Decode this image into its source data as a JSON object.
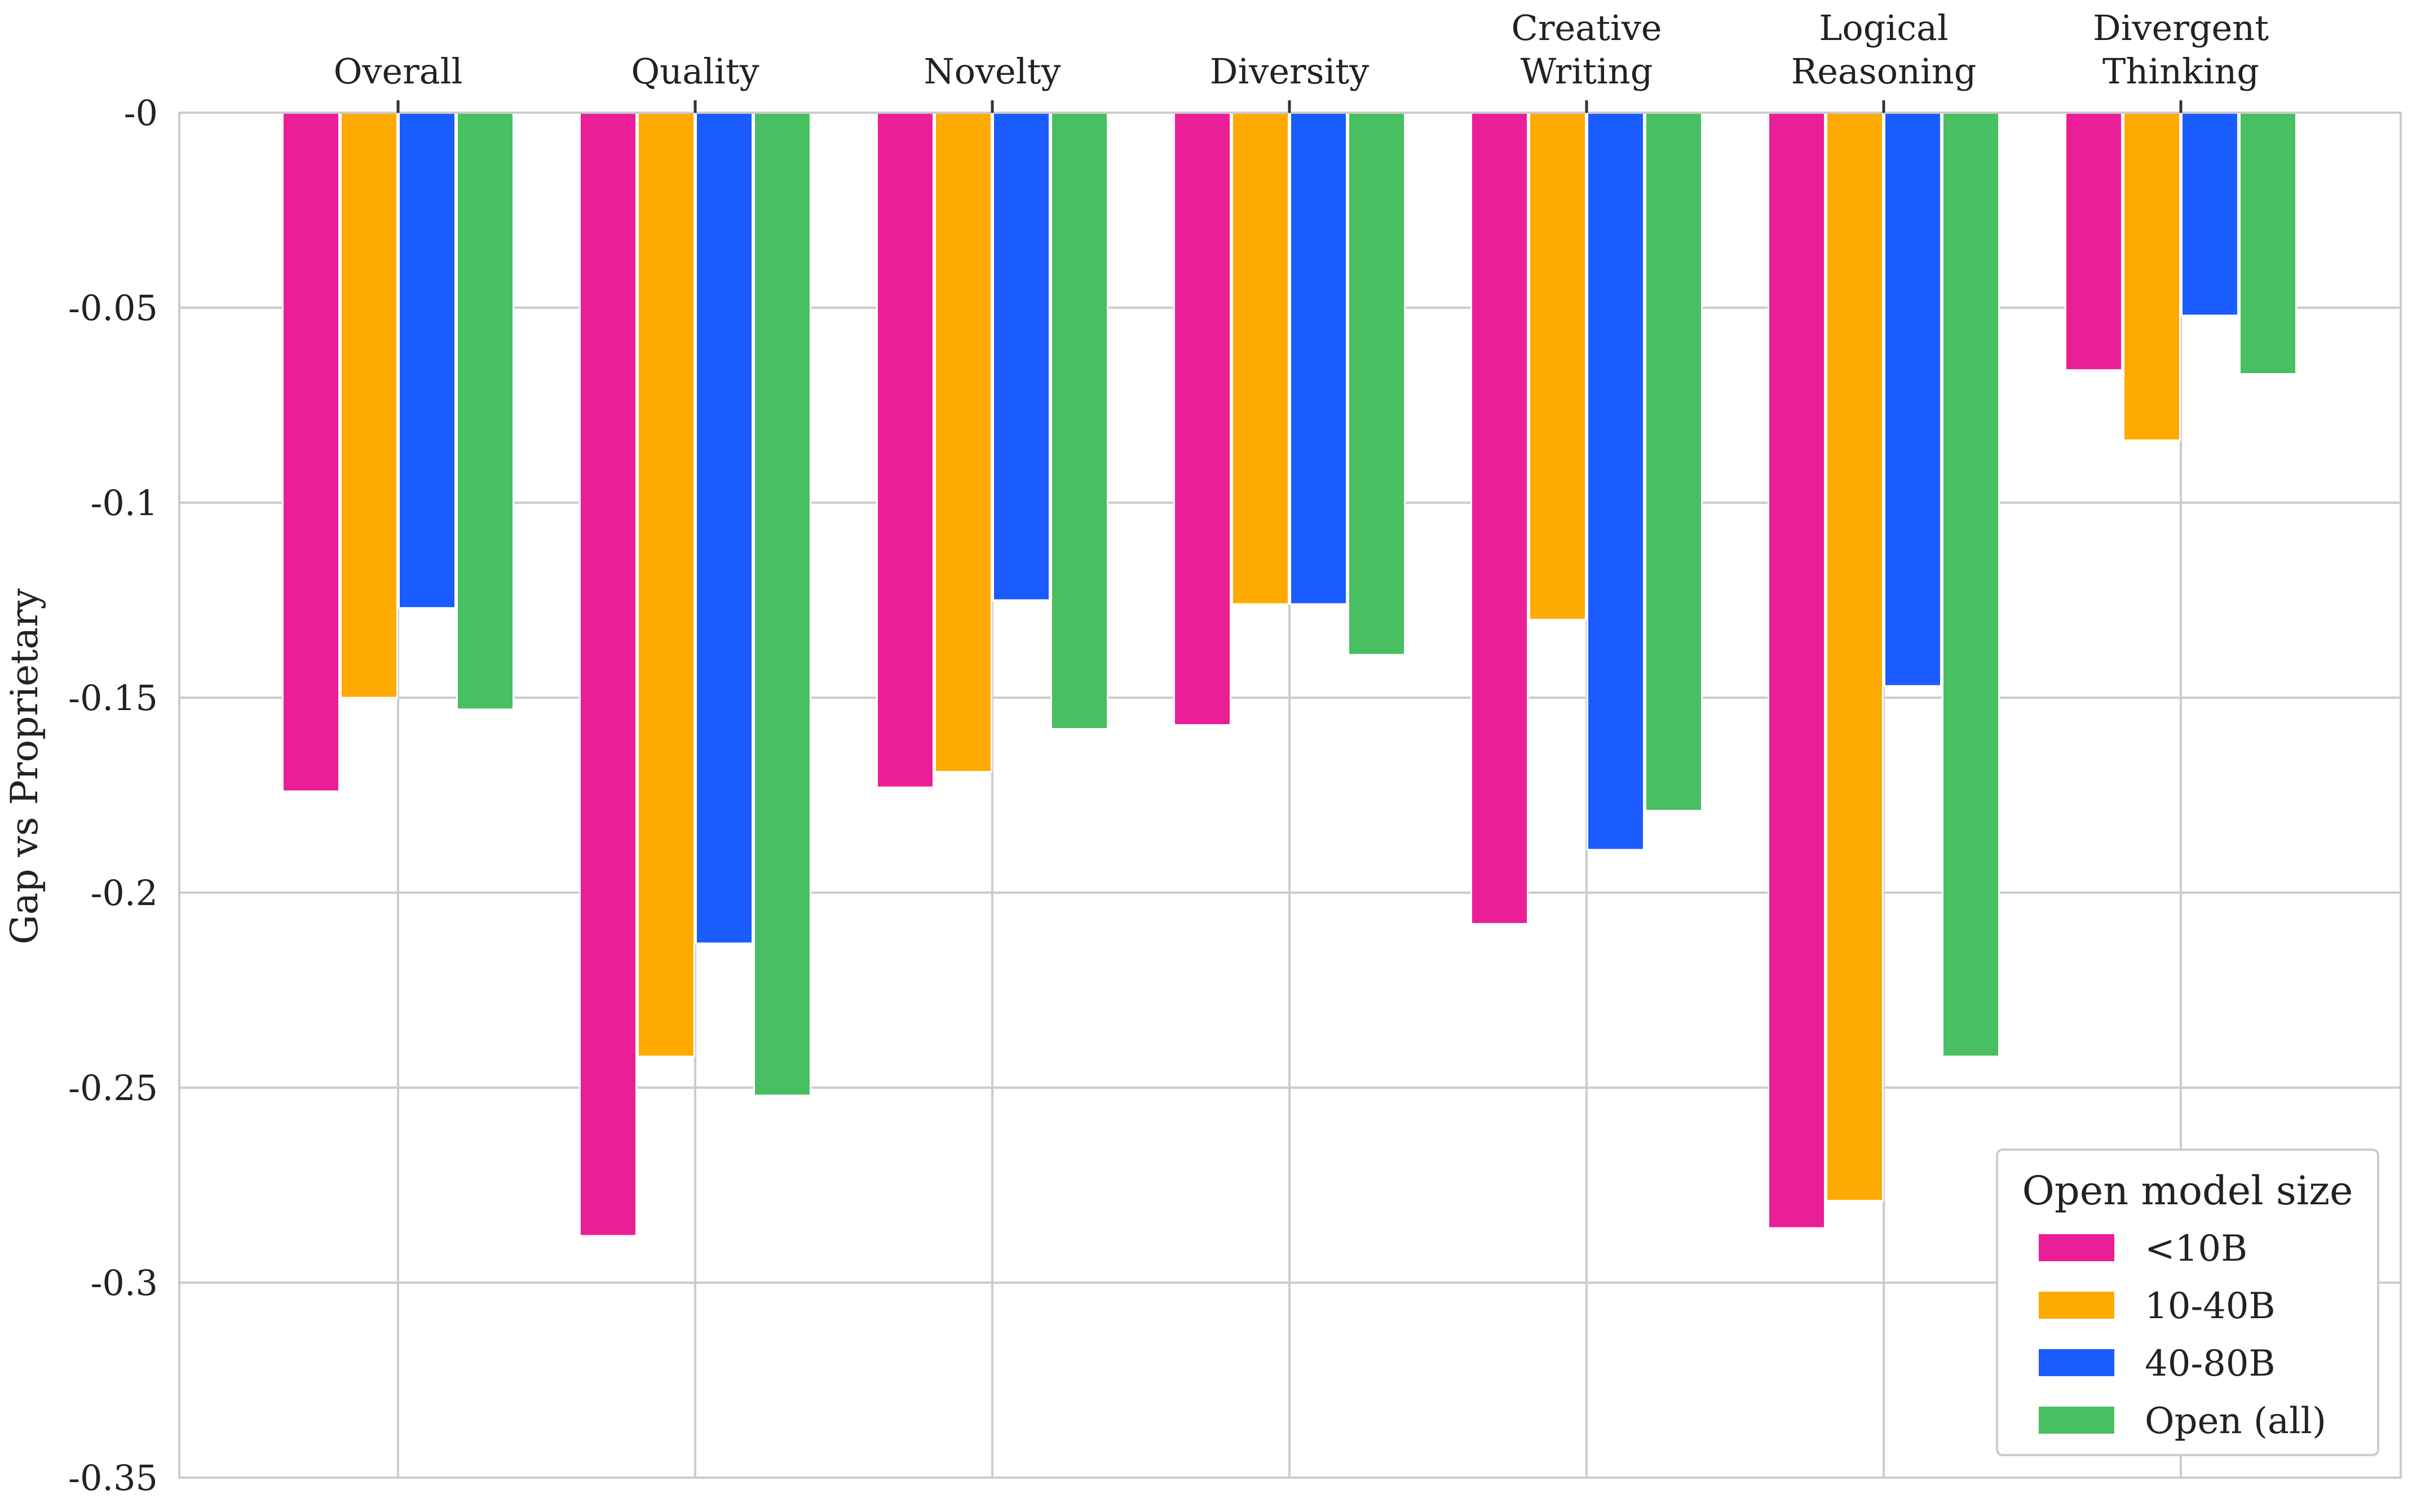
{
  "chart_data": {
    "type": "bar",
    "title": "",
    "xlabel": "",
    "ylabel": "Gap vs Proprietary",
    "ylim": [
      -0.35,
      0
    ],
    "yticks": [
      "-0",
      "-0.05",
      "-0.1",
      "-0.15",
      "-0.2",
      "-0.25",
      "-0.3",
      "-0.35"
    ],
    "ytick_values": [
      0,
      -0.05,
      -0.1,
      -0.15,
      -0.2,
      -0.25,
      -0.3,
      -0.35
    ],
    "x_axis_position": "top",
    "grid": true,
    "categories": [
      [
        "Overall"
      ],
      [
        "Quality"
      ],
      [
        "Novelty"
      ],
      [
        "Diversity"
      ],
      [
        "Creative",
        "Writing"
      ],
      [
        "Logical",
        "Reasoning"
      ],
      [
        "Divergent",
        "Thinking"
      ]
    ],
    "series": [
      {
        "name": "<10B",
        "color": "#ea1e96",
        "values": [
          -0.174,
          -0.288,
          -0.173,
          -0.157,
          -0.208,
          -0.286,
          -0.066
        ]
      },
      {
        "name": "10-40B",
        "color": "#ffaa00",
        "values": [
          -0.15,
          -0.242,
          -0.169,
          -0.126,
          -0.13,
          -0.279,
          -0.084
        ]
      },
      {
        "name": "40-80B",
        "color": "#1a5cff",
        "values": [
          -0.127,
          -0.213,
          -0.125,
          -0.126,
          -0.189,
          -0.147,
          -0.052
        ]
      },
      {
        "name": "Open (all)",
        "color": "#48bf60",
        "values": [
          -0.153,
          -0.252,
          -0.158,
          -0.139,
          -0.179,
          -0.242,
          -0.067
        ]
      }
    ],
    "legend": {
      "title": "Open model size",
      "placement": "bottom-right"
    }
  }
}
